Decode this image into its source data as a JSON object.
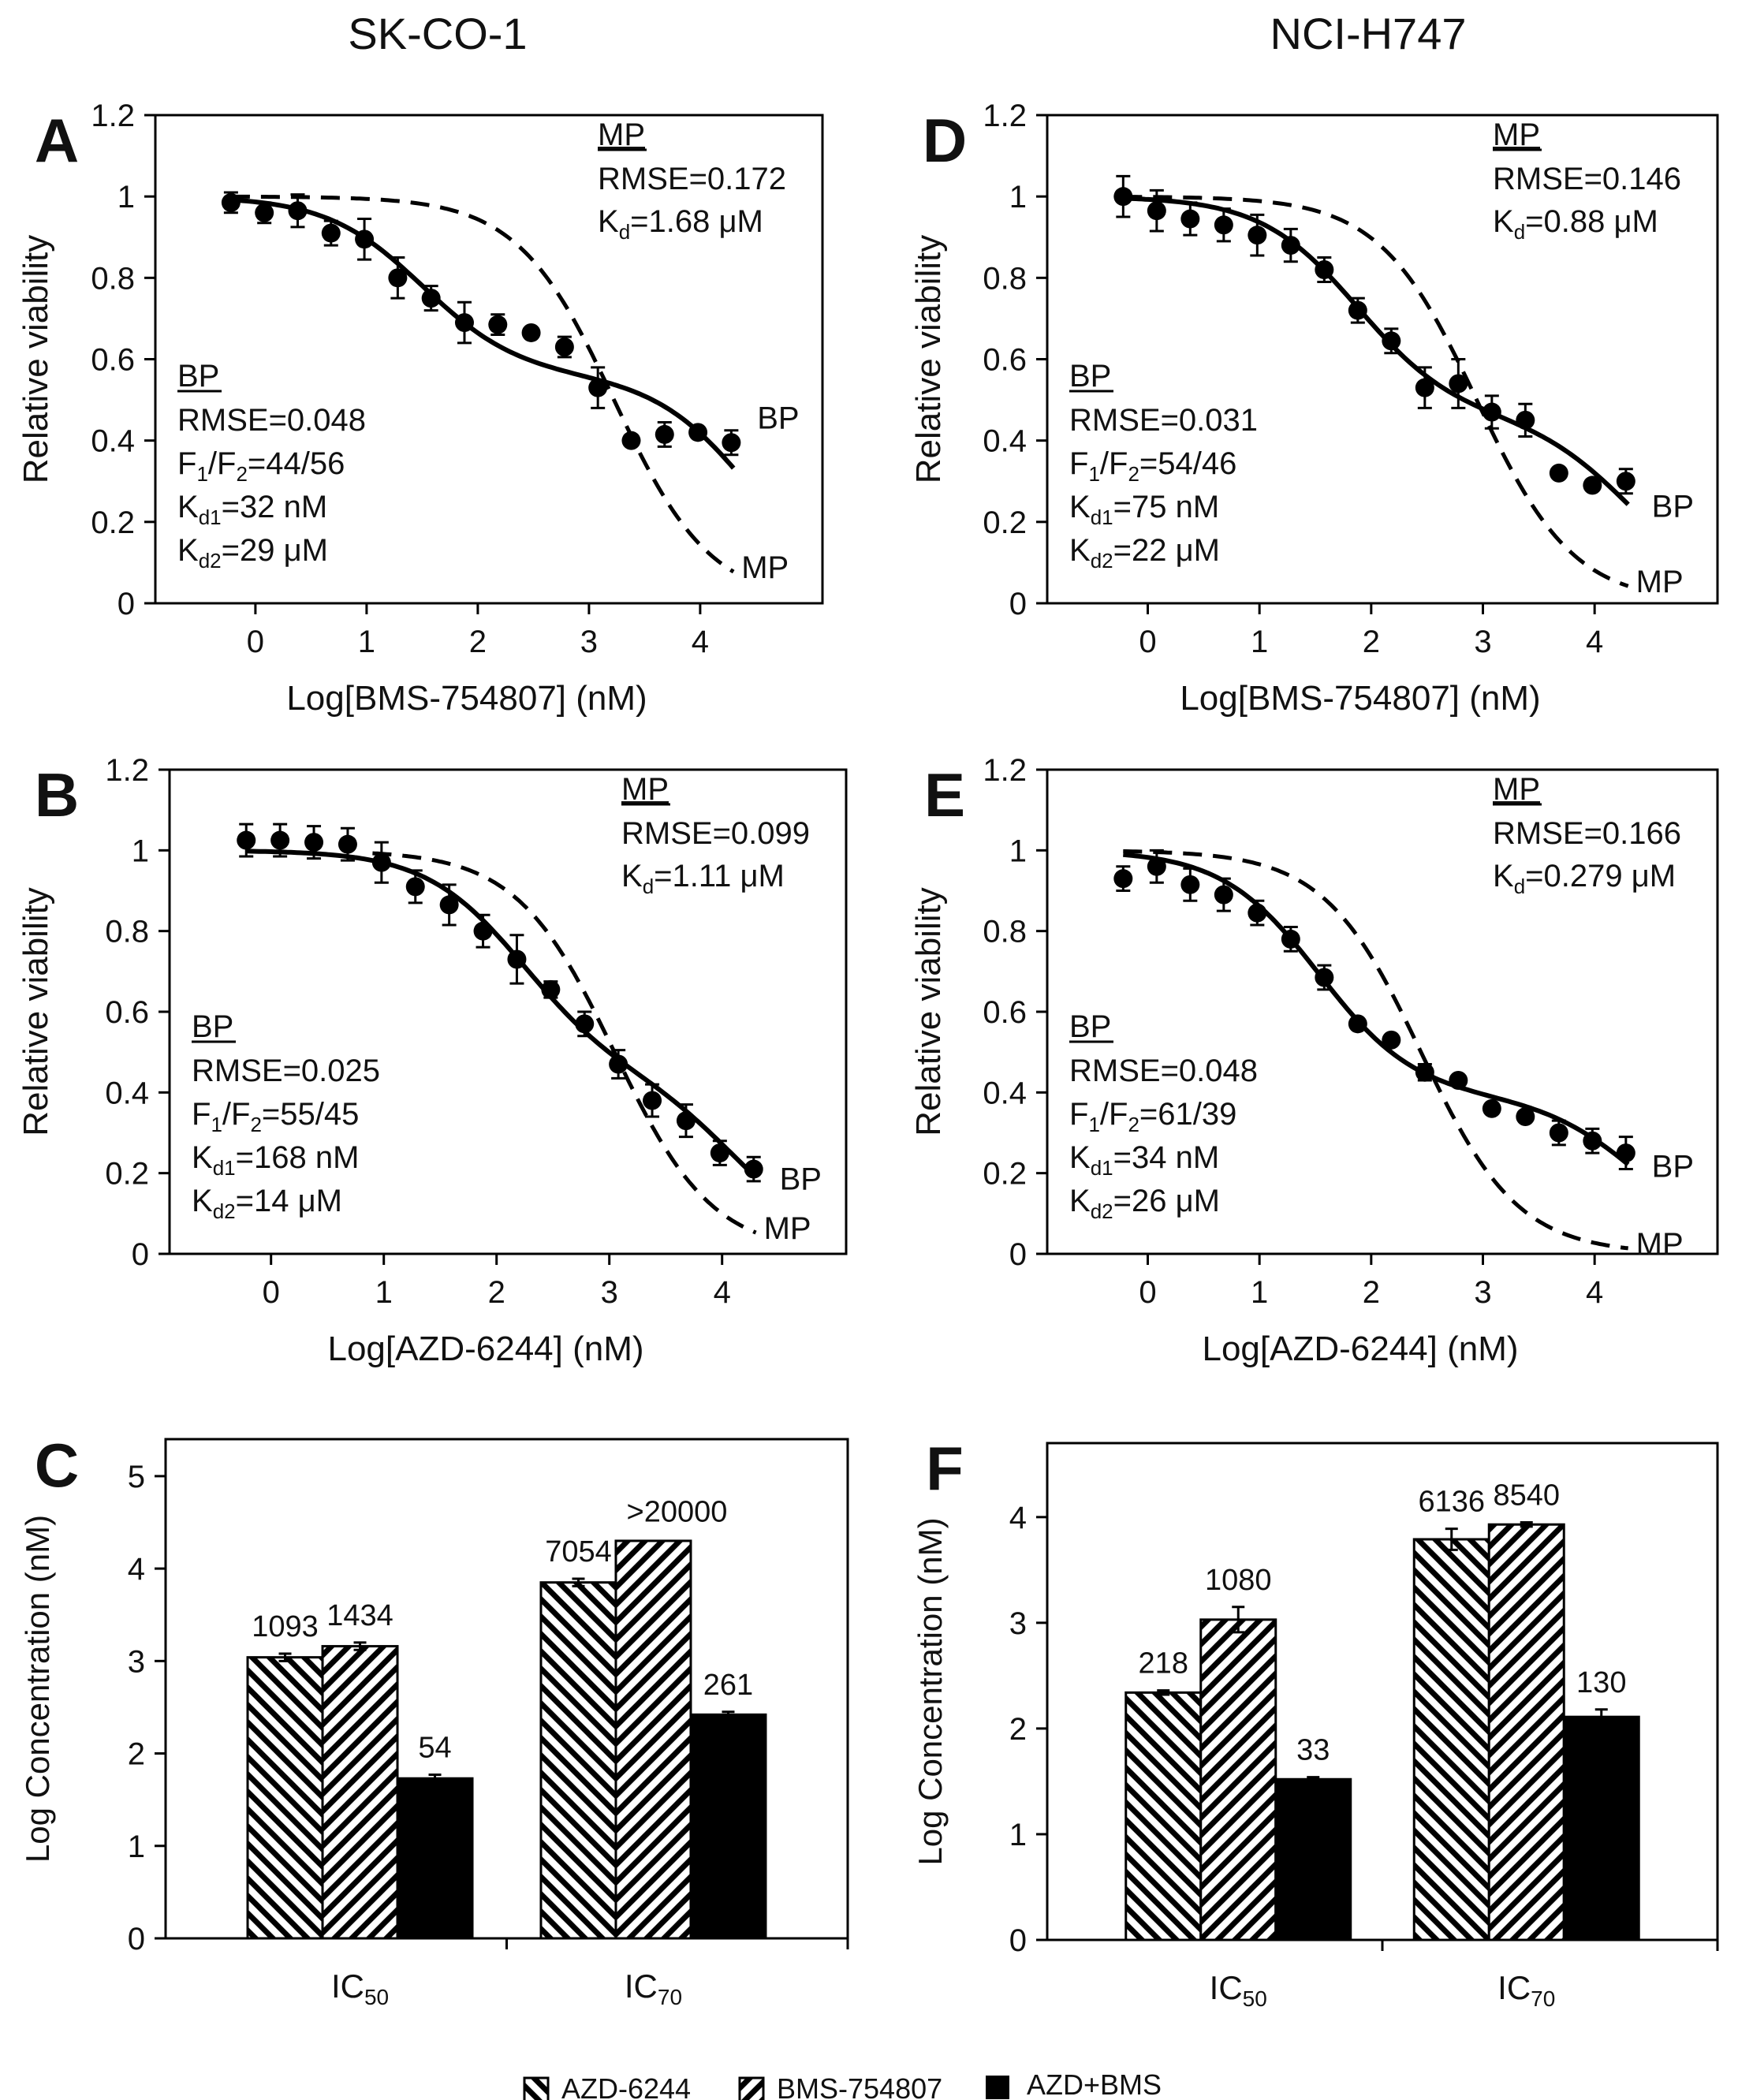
{
  "figure": {
    "column_titles": [
      "SK-CO-1",
      "NCI-H747"
    ],
    "legend": [
      "AZD-6244",
      "BMS-754807",
      "AZD+BMS"
    ]
  },
  "chart_data": [
    {
      "panel": "A",
      "type": "scatter",
      "title": "",
      "xlabel": "Log[BMS-754807] (nM)",
      "ylabel": "Relative viability",
      "xlim": [
        -0.9,
        5.1
      ],
      "ylim": [
        0,
        1.2
      ],
      "xticks": [
        0,
        1,
        2,
        3,
        4
      ],
      "yticks": [
        0,
        0.2,
        0.4,
        0.6,
        0.8,
        1,
        1.2
      ],
      "points": {
        "x": [
          -0.22,
          0.08,
          0.38,
          0.68,
          0.98,
          1.28,
          1.58,
          1.88,
          2.18,
          2.48,
          2.78,
          3.08,
          3.38,
          3.68,
          3.98,
          4.28
        ],
        "y": [
          0.985,
          0.96,
          0.965,
          0.91,
          0.895,
          0.8,
          0.75,
          0.69,
          0.685,
          0.665,
          0.63,
          0.53,
          0.4,
          0.415,
          0.42,
          0.395
        ],
        "err": [
          0.025,
          0.025,
          0.04,
          0.03,
          0.05,
          0.05,
          0.03,
          0.05,
          0.025,
          0.01,
          0.025,
          0.05,
          0.01,
          0.03,
          0.01,
          0.03
        ]
      },
      "bp_fit": {
        "f1": 0.44,
        "kd1_log": 1.505,
        "kd2_log": 4.462,
        "x_range": [
          -0.22,
          4.3
        ]
      },
      "mp_fit": {
        "kd_log": 3.225,
        "hill": 1.0,
        "x_range": [
          -0.22,
          4.3
        ]
      },
      "curve_labels": [
        "BP",
        "MP"
      ],
      "mp_block": {
        "head": "MP",
        "rmse": "RMSE=0.172",
        "kd_prefix": "K",
        "kd_sub": "d",
        "kd_val": "=1.68 μM"
      },
      "bp_block": {
        "head": "BP",
        "rmse": "RMSE=0.048",
        "f_a": "F",
        "f_a_sub": "1",
        "f_b": "/F",
        "f_b_sub": "2",
        "f_val": "=44/56",
        "kd1_prefix": "K",
        "kd1_sub": "d1",
        "kd1_val": "=32 nM",
        "kd2_prefix": "K",
        "kd2_sub": "d2",
        "kd2_val": "=29 μM"
      }
    },
    {
      "panel": "B",
      "type": "scatter",
      "title": "",
      "xlabel": "Log[AZD-6244] (nM)",
      "ylabel": "Relative viability",
      "xlim": [
        -0.9,
        5.1
      ],
      "ylim": [
        0,
        1.2
      ],
      "xticks": [
        0,
        1,
        2,
        3,
        4
      ],
      "yticks": [
        0,
        0.2,
        0.4,
        0.6,
        0.8,
        1,
        1.2
      ],
      "points": {
        "x": [
          -0.22,
          0.08,
          0.38,
          0.68,
          0.98,
          1.28,
          1.58,
          1.88,
          2.18,
          2.48,
          2.78,
          3.08,
          3.38,
          3.68,
          3.98,
          4.28
        ],
        "y": [
          1.025,
          1.025,
          1.02,
          1.015,
          0.97,
          0.91,
          0.865,
          0.8,
          0.73,
          0.655,
          0.57,
          0.47,
          0.38,
          0.33,
          0.25,
          0.21
        ],
        "err": [
          0.04,
          0.04,
          0.04,
          0.04,
          0.05,
          0.04,
          0.05,
          0.04,
          0.06,
          0.02,
          0.03,
          0.035,
          0.04,
          0.04,
          0.03,
          0.03
        ]
      },
      "bp_fit": {
        "f1": 0.55,
        "kd1_log": 2.225,
        "kd2_log": 4.146,
        "x_range": [
          -0.22,
          4.3
        ]
      },
      "mp_fit": {
        "kd_log": 3.045,
        "hill": 1.0,
        "x_range": [
          0.9,
          4.3
        ]
      },
      "curve_labels": [
        "BP",
        "MP"
      ],
      "mp_block": {
        "head": "MP",
        "rmse": "RMSE=0.099",
        "kd_prefix": "K",
        "kd_sub": "d",
        "kd_val": "=1.11 μM"
      },
      "bp_block": {
        "head": "BP",
        "rmse": "RMSE=0.025",
        "f_a": "F",
        "f_a_sub": "1",
        "f_b": "/F",
        "f_b_sub": "2",
        "f_val": "=55/45",
        "kd1_prefix": "K",
        "kd1_sub": "d1",
        "kd1_val": "=168 nM",
        "kd2_prefix": "K",
        "kd2_sub": "d2",
        "kd2_val": "=14 μM"
      }
    },
    {
      "panel": "C",
      "type": "bar",
      "title": "",
      "xlabel": "",
      "ylabel": "Log Concentration (nM)",
      "ylim": [
        0,
        5.4
      ],
      "yticks": [
        0,
        1,
        2,
        3,
        4,
        5
      ],
      "categories": [
        {
          "base": "IC",
          "sub": "50"
        },
        {
          "base": "IC",
          "sub": "70"
        }
      ],
      "series": [
        {
          "name": "AZD-6244",
          "pattern": "back",
          "values": [
            3.04,
            3.85
          ],
          "err": [
            0.04,
            0.04
          ],
          "labels": [
            "1093",
            "7054"
          ]
        },
        {
          "name": "BMS-754807",
          "pattern": "fwd",
          "values": [
            3.16,
            4.3
          ],
          "err": [
            0.04,
            0
          ],
          "labels": [
            "1434",
            ">20000"
          ]
        },
        {
          "name": "AZD+BMS",
          "pattern": "solid",
          "values": [
            1.73,
            2.42
          ],
          "err": [
            0.04,
            0.03
          ],
          "labels": [
            "54",
            "261"
          ]
        }
      ]
    },
    {
      "panel": "D",
      "type": "scatter",
      "title": "",
      "xlabel": "Log[BMS-754807] (nM)",
      "ylabel": "Relative viability",
      "xlim": [
        -0.9,
        5.1
      ],
      "ylim": [
        0,
        1.2
      ],
      "xticks": [
        0,
        1,
        2,
        3,
        4
      ],
      "yticks": [
        0,
        0.2,
        0.4,
        0.6,
        0.8,
        1,
        1.2
      ],
      "points": {
        "x": [
          -0.22,
          0.08,
          0.38,
          0.68,
          0.98,
          1.28,
          1.58,
          1.88,
          2.18,
          2.48,
          2.78,
          3.08,
          3.38,
          3.68,
          3.98,
          4.28
        ],
        "y": [
          1.0,
          0.965,
          0.945,
          0.93,
          0.905,
          0.88,
          0.82,
          0.72,
          0.645,
          0.53,
          0.54,
          0.47,
          0.45,
          0.32,
          0.29,
          0.3
        ],
        "err": [
          0.05,
          0.05,
          0.04,
          0.04,
          0.05,
          0.04,
          0.03,
          0.03,
          0.03,
          0.05,
          0.06,
          0.04,
          0.04,
          0.01,
          0.01,
          0.03
        ]
      },
      "bp_fit": {
        "f1": 0.54,
        "kd1_log": 1.875,
        "kd2_log": 4.342,
        "x_range": [
          -0.22,
          4.3
        ]
      },
      "mp_fit": {
        "kd_log": 2.944,
        "hill": 1.0,
        "x_range": [
          -0.22,
          4.3
        ]
      },
      "curve_labels": [
        "BP",
        "MP"
      ],
      "mp_block": {
        "head": "MP",
        "rmse": "RMSE=0.146",
        "kd_prefix": "K",
        "kd_sub": "d",
        "kd_val": "=0.88 μM"
      },
      "bp_block": {
        "head": "BP",
        "rmse": "RMSE=0.031",
        "f_a": "F",
        "f_a_sub": "1",
        "f_b": "/F",
        "f_b_sub": "2",
        "f_val": "=54/46",
        "kd1_prefix": "K",
        "kd1_sub": "d1",
        "kd1_val": "=75 nM",
        "kd2_prefix": "K",
        "kd2_sub": "d2",
        "kd2_val": "=22 μM"
      }
    },
    {
      "panel": "E",
      "type": "scatter",
      "title": "",
      "xlabel": "Log[AZD-6244] (nM)",
      "ylabel": "Relative viability",
      "xlim": [
        -0.9,
        5.1
      ],
      "ylim": [
        0,
        1.2
      ],
      "xticks": [
        0,
        1,
        2,
        3,
        4
      ],
      "yticks": [
        0,
        0.2,
        0.4,
        0.6,
        0.8,
        1,
        1.2
      ],
      "points": {
        "x": [
          -0.22,
          0.08,
          0.38,
          0.68,
          0.98,
          1.28,
          1.58,
          1.88,
          2.18,
          2.48,
          2.78,
          3.08,
          3.38,
          3.68,
          3.98,
          4.28
        ],
        "y": [
          0.93,
          0.96,
          0.915,
          0.89,
          0.845,
          0.78,
          0.685,
          0.57,
          0.53,
          0.45,
          0.43,
          0.36,
          0.34,
          0.3,
          0.28,
          0.25
        ],
        "err": [
          0.03,
          0.04,
          0.04,
          0.04,
          0.03,
          0.03,
          0.03,
          0.01,
          0.01,
          0.02,
          0.01,
          0.01,
          0.01,
          0.03,
          0.03,
          0.04
        ]
      },
      "bp_fit": {
        "f1": 0.61,
        "kd1_log": 1.531,
        "kd2_log": 4.415,
        "x_range": [
          -0.22,
          4.3
        ]
      },
      "mp_fit": {
        "kd_log": 2.446,
        "hill": 1.0,
        "x_range": [
          -0.22,
          4.3
        ]
      },
      "curve_labels": [
        "BP",
        "MP"
      ],
      "mp_block": {
        "head": "MP",
        "rmse": "RMSE=0.166",
        "kd_prefix": "K",
        "kd_sub": "d",
        "kd_val": "=0.279 μM"
      },
      "bp_block": {
        "head": "BP",
        "rmse": "RMSE=0.048",
        "f_a": "F",
        "f_a_sub": "1",
        "f_b": "/F",
        "f_b_sub": "2",
        "f_val": "=61/39",
        "kd1_prefix": "K",
        "kd1_sub": "d1",
        "kd1_val": "=34 nM",
        "kd2_prefix": "K",
        "kd2_sub": "d2",
        "kd2_val": "=26 μM"
      }
    },
    {
      "panel": "F",
      "type": "bar",
      "title": "",
      "xlabel": "",
      "ylabel": "Log Concentration (nM)",
      "ylim": [
        0,
        4.7
      ],
      "yticks": [
        0,
        1,
        2,
        3,
        4
      ],
      "categories": [
        {
          "base": "IC",
          "sub": "50"
        },
        {
          "base": "IC",
          "sub": "70"
        }
      ],
      "series": [
        {
          "name": "AZD-6244",
          "pattern": "back",
          "values": [
            2.34,
            3.79
          ],
          "err": [
            0.02,
            0.1
          ],
          "labels": [
            "218",
            "6136"
          ]
        },
        {
          "name": "BMS-754807",
          "pattern": "fwd",
          "values": [
            3.03,
            3.93
          ],
          "err": [
            0.12,
            0.02
          ],
          "labels": [
            "1080",
            "8540"
          ]
        },
        {
          "name": "AZD+BMS",
          "pattern": "solid",
          "values": [
            1.52,
            2.11
          ],
          "err": [
            0.02,
            0.07
          ],
          "labels": [
            "33",
            "130"
          ]
        }
      ]
    }
  ]
}
